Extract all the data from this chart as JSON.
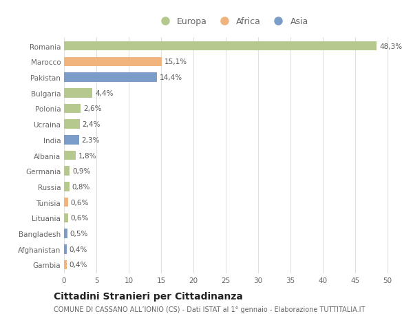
{
  "categories": [
    "Romania",
    "Marocco",
    "Pakistan",
    "Bulgaria",
    "Polonia",
    "Ucraina",
    "India",
    "Albania",
    "Germania",
    "Russia",
    "Tunisia",
    "Lituania",
    "Bangladesh",
    "Afghanistan",
    "Gambia"
  ],
  "values": [
    48.3,
    15.1,
    14.4,
    4.4,
    2.6,
    2.4,
    2.3,
    1.8,
    0.9,
    0.8,
    0.6,
    0.6,
    0.5,
    0.4,
    0.4
  ],
  "labels": [
    "48,3%",
    "15,1%",
    "14,4%",
    "4,4%",
    "2,6%",
    "2,4%",
    "2,3%",
    "1,8%",
    "0,9%",
    "0,8%",
    "0,6%",
    "0,6%",
    "0,5%",
    "0,4%",
    "0,4%"
  ],
  "colors": [
    "#b5c98e",
    "#f2b47e",
    "#7b9dc9",
    "#b5c98e",
    "#b5c98e",
    "#b5c98e",
    "#7b9dc9",
    "#b5c98e",
    "#b5c98e",
    "#b5c98e",
    "#f2b47e",
    "#b5c98e",
    "#7b9dc9",
    "#7b9dc9",
    "#f2b47e"
  ],
  "continents": [
    "Europa",
    "Africa",
    "Asia"
  ],
  "legend_colors": [
    "#b5c98e",
    "#f2b47e",
    "#7b9dc9"
  ],
  "xlim": [
    0,
    52
  ],
  "xticks": [
    0,
    5,
    10,
    15,
    20,
    25,
    30,
    35,
    40,
    45,
    50
  ],
  "title": "Cittadini Stranieri per Cittadinanza",
  "subtitle": "COMUNE DI CASSANO ALL’IONIO (CS) - Dati ISTAT al 1° gennaio - Elaborazione TUTTITALIA.IT",
  "background_color": "#ffffff",
  "grid_color": "#e0e0e0",
  "bar_height": 0.6,
  "label_fontsize": 7.5,
  "tick_fontsize": 7.5,
  "title_fontsize": 10,
  "subtitle_fontsize": 7
}
